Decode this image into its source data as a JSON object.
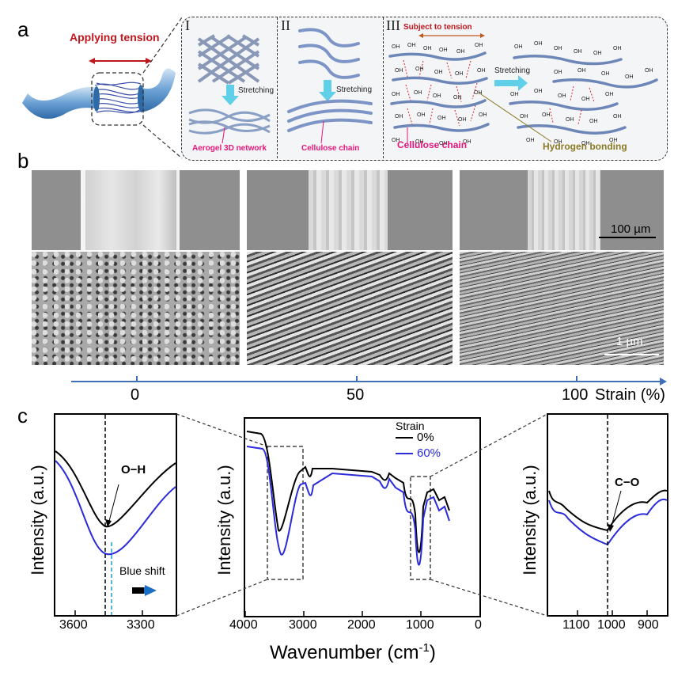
{
  "panel_a": {
    "label": "a",
    "tension_label": "Applying tension",
    "sections": [
      {
        "numeral": "I",
        "stretch": "Stretching",
        "caption": "Aerogel 3D network"
      },
      {
        "numeral": "II",
        "stretch": "Stretching",
        "caption": "Cellulose chain"
      },
      {
        "numeral": "III",
        "top": "Subject to tension",
        "stretch": "Stretching",
        "caption_left": "Cellulose chain",
        "caption_right": "Hydrogen bonding"
      }
    ],
    "oh": "OH"
  },
  "panel_b": {
    "label": "b",
    "scale_top": "100 µm",
    "scale_bottom": "1 µm",
    "strain_ticks": [
      "0",
      "50",
      "100"
    ],
    "strain_label": "Strain (%)"
  },
  "panel_c": {
    "label": "c",
    "ylabel": "Intensity (a.u.)",
    "xlabel_main": "Wavenumber (cm",
    "xlabel_sup": "-1",
    "xlabel_close": ")",
    "left": {
      "ticks": [
        "3600",
        "3300"
      ],
      "annotation": "O−H",
      "shift": "Blue shift"
    },
    "middle": {
      "ticks": [
        "4000",
        "3000",
        "2000",
        "1000",
        "0"
      ],
      "legend_title": "Strain",
      "legend": [
        {
          "name": "0%",
          "color": "#000000"
        },
        {
          "name": "60%",
          "color": "#2b2bd9"
        }
      ]
    },
    "right": {
      "ticks": [
        "1100",
        "1000",
        "900"
      ],
      "annotation": "C−O"
    }
  }
}
